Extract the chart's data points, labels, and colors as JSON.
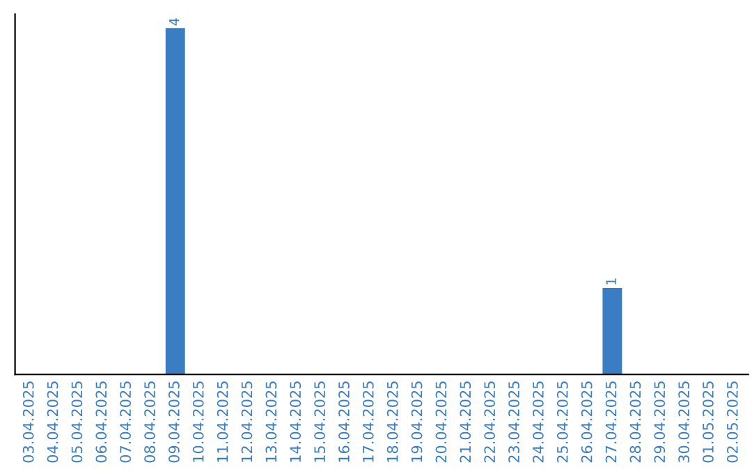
{
  "chart_data": {
    "type": "bar",
    "categories": [
      "03.04.2025",
      "04.04.2025",
      "05.04.2025",
      "06.04.2025",
      "07.04.2025",
      "08.04.2025",
      "09.04.2025",
      "10.04.2025",
      "11.04.2025",
      "12.04.2025",
      "13.04.2025",
      "14.04.2025",
      "15.04.2025",
      "16.04.2025",
      "17.04.2025",
      "18.04.2025",
      "19.04.2025",
      "20.04.2025",
      "21.04.2025",
      "22.04.2025",
      "23.04.2025",
      "24.04.2025",
      "25.04.2025",
      "26.04.2025",
      "27.04.2025",
      "28.04.2025",
      "29.04.2025",
      "30.04.2025",
      "01.05.2025",
      "02.05.2025"
    ],
    "values": [
      0,
      0,
      0,
      0,
      0,
      0,
      4,
      0,
      0,
      0,
      0,
      0,
      0,
      0,
      0,
      0,
      0,
      0,
      0,
      0,
      0,
      0,
      0,
      0,
      1,
      0,
      0,
      0,
      0,
      0
    ],
    "value_labels": [
      null,
      null,
      null,
      null,
      null,
      null,
      "4",
      null,
      null,
      null,
      null,
      null,
      null,
      null,
      null,
      null,
      null,
      null,
      null,
      null,
      null,
      null,
      null,
      null,
      "1",
      null,
      null,
      null,
      null,
      null
    ],
    "color": "#3a7dc2",
    "tick_labels": "x",
    "grid": false,
    "legend": false
  }
}
